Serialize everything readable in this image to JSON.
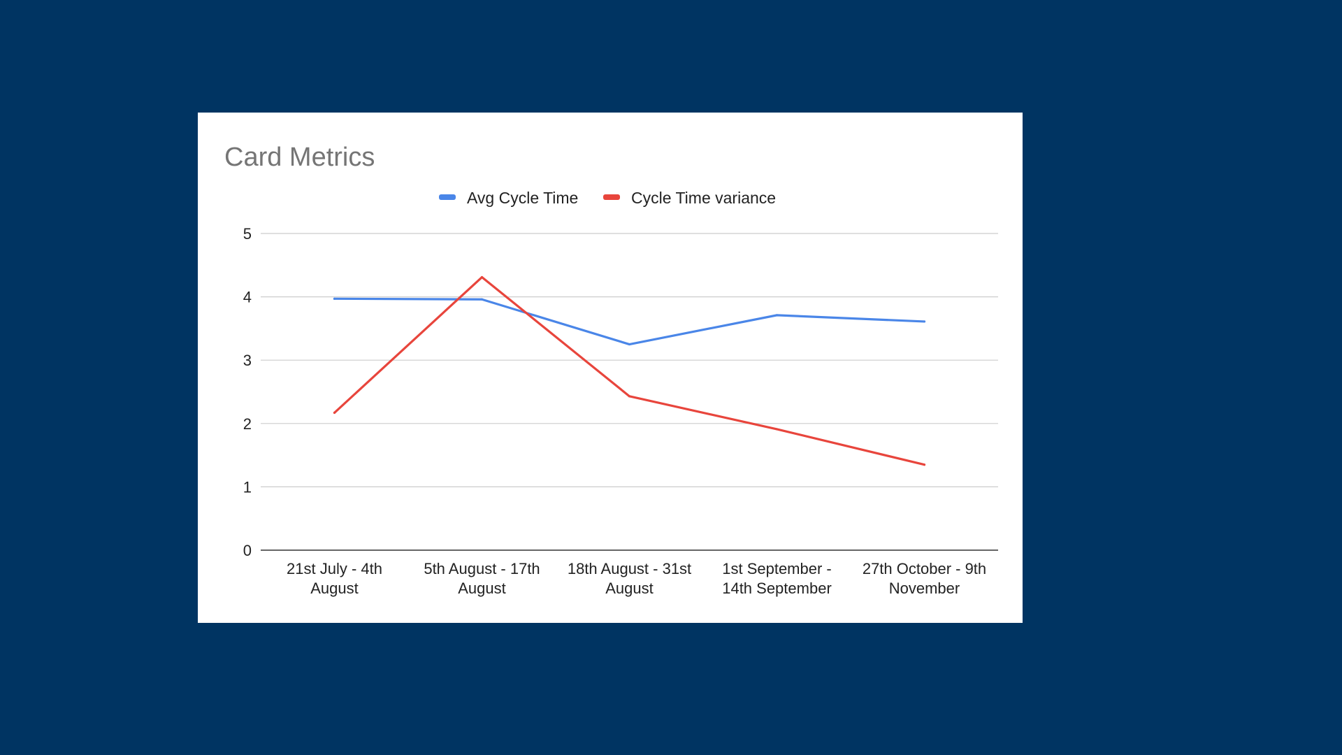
{
  "colors": {
    "background": "#003462",
    "card": "#ffffff",
    "gridline": "#cccccc",
    "axis_line": "#333333",
    "series_avg": "#4a86e8",
    "series_variance": "#e8453c"
  },
  "chart_data": {
    "type": "line",
    "title": "Card Metrics",
    "xlabel": "",
    "ylabel": "",
    "categories": [
      [
        "21st July - 4th",
        "August"
      ],
      [
        "5th August - 17th",
        "August"
      ],
      [
        "18th August - 31st",
        "August"
      ],
      [
        "1st September -",
        "14th September"
      ],
      [
        "27th October - 9th",
        "November"
      ]
    ],
    "series": [
      {
        "name": "Avg Cycle Time",
        "color": "#4a86e8",
        "values": [
          3.97,
          3.96,
          3.25,
          3.71,
          3.61
        ]
      },
      {
        "name": "Cycle Time variance",
        "color": "#e8453c",
        "values": [
          2.17,
          4.31,
          2.43,
          1.91,
          1.35
        ]
      }
    ],
    "ylim": [
      0,
      5
    ],
    "yticks": [
      "0",
      "1",
      "2",
      "3",
      "4",
      "5"
    ],
    "grid": true,
    "legend_position": "top-center"
  }
}
